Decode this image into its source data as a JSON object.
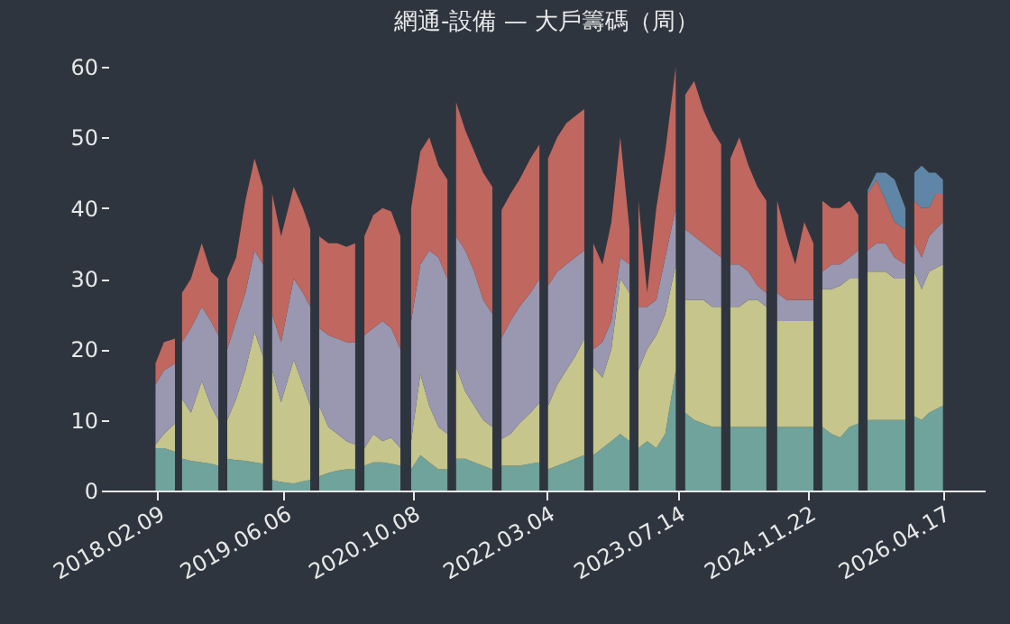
{
  "chart_data": {
    "type": "area",
    "stacked": true,
    "title": "網通-設備 — 大戶籌碼（周）",
    "x": [
      "2018-02-02",
      "2018-03-06",
      "2018-04-17",
      "2018-04-30",
      "2018-05-14",
      "2018-06-17",
      "2018-07-28",
      "2018-09-01",
      "2018-09-29",
      "2018-10-16",
      "2018-11-02",
      "2018-12-06",
      "2019-01-10",
      "2019-02-14",
      "2019-03-18",
      "2019-04-05",
      "2019-04-22",
      "2019-05-26",
      "2019-07-13",
      "2019-08-17",
      "2019-09-14",
      "2019-10-01",
      "2019-10-18",
      "2019-11-22",
      "2019-12-26",
      "2020-01-30",
      "2020-03-03",
      "2020-03-20",
      "2020-04-07",
      "2020-05-11",
      "2020-06-15",
      "2020-07-18",
      "2020-08-22",
      "2020-09-12",
      "2020-10-02",
      "2020-11-06",
      "2020-12-10",
      "2021-01-14",
      "2021-02-17",
      "2021-03-05",
      "2021-03-22",
      "2021-04-26",
      "2021-05-30",
      "2021-07-03",
      "2021-08-07",
      "2021-08-24",
      "2021-09-11",
      "2021-10-15",
      "2021-11-18",
      "2021-12-30",
      "2022-02-02",
      "2022-02-19",
      "2022-03-07",
      "2022-04-11",
      "2022-05-15",
      "2022-06-18",
      "2022-07-23",
      "2022-08-09",
      "2022-08-26",
      "2022-09-30",
      "2022-11-03",
      "2022-12-07",
      "2023-01-11",
      "2023-01-28",
      "2023-02-14",
      "2023-03-19",
      "2023-04-23",
      "2023-05-27",
      "2023-07-06",
      "2023-07-24",
      "2023-08-11",
      "2023-09-14",
      "2023-10-18",
      "2023-11-22",
      "2023-12-26",
      "2024-01-13",
      "2024-01-30",
      "2024-03-04",
      "2024-04-08",
      "2024-05-12",
      "2024-06-15",
      "2024-07-05",
      "2024-07-26",
      "2024-08-30",
      "2024-10-03",
      "2024-11-06",
      "2024-12-11",
      "2024-12-28",
      "2025-01-14",
      "2025-02-18",
      "2025-03-23",
      "2025-04-27",
      "2025-05-31",
      "2025-06-18",
      "2025-07-05",
      "2025-08-08",
      "2025-09-12",
      "2025-10-16",
      "2025-11-26",
      "2025-12-12",
      "2025-12-30",
      "2026-01-27",
      "2026-02-24",
      "2026-03-21",
      "2026-04-18"
    ],
    "series": [
      {
        "color": "#6fa39c",
        "values": [
          6,
          6,
          5.5,
          null,
          4.5,
          4.2,
          4,
          3.8,
          3.5,
          null,
          4.5,
          4.3,
          4.2,
          4,
          3.8,
          null,
          1.5,
          1.2,
          1,
          1.3,
          1.5,
          null,
          2,
          2.5,
          2.8,
          3,
          3,
          null,
          3.5,
          4,
          4,
          3.8,
          3.5,
          null,
          3,
          5,
          4,
          3,
          3,
          null,
          4.5,
          4.5,
          4,
          3.5,
          3,
          null,
          3.5,
          3.5,
          3.5,
          3.8,
          4,
          null,
          3,
          3.5,
          4,
          4.5,
          5,
          null,
          5,
          6,
          7,
          8,
          7,
          null,
          6,
          7,
          6,
          8,
          17,
          null,
          11,
          10,
          9.5,
          9,
          9,
          null,
          9,
          9,
          9,
          9,
          9,
          null,
          9,
          9,
          9,
          9,
          9,
          null,
          9,
          8,
          7.5,
          9,
          9.5,
          null,
          10,
          10,
          10,
          10,
          10,
          null,
          10.5,
          10,
          11,
          11.5,
          12
        ]
      },
      {
        "color": "#c5c58c",
        "values": [
          0.5,
          2,
          4,
          null,
          8.5,
          6.8,
          11.5,
          8.2,
          6.5,
          null,
          5.5,
          8.7,
          12.8,
          18.5,
          15.2,
          null,
          15.5,
          11.3,
          17.5,
          13.7,
          10.5,
          null,
          10,
          6.5,
          5.2,
          4,
          3.5,
          null,
          2.5,
          4,
          3,
          3.7,
          2.5,
          null,
          4,
          11.5,
          8,
          6,
          5,
          null,
          13,
          9.5,
          8,
          6.5,
          6,
          null,
          3.8,
          4.5,
          6,
          7.2,
          8.4,
          null,
          9,
          11.5,
          13,
          14.5,
          16.5,
          null,
          12.5,
          10,
          13,
          22,
          21,
          null,
          11,
          13,
          16,
          17,
          15,
          null,
          16,
          17,
          17.5,
          17,
          17,
          null,
          17,
          17,
          18,
          18,
          17,
          null,
          15,
          15,
          15,
          15,
          15,
          null,
          19.5,
          20.5,
          21.5,
          21,
          20.5,
          null,
          21,
          21,
          21,
          20,
          20,
          null,
          20.5,
          18.5,
          20,
          20,
          20
        ]
      },
      {
        "color": "#9a97b0",
        "values": [
          8.5,
          9,
          8.5,
          null,
          8,
          12,
          10.5,
          12,
          12,
          null,
          10,
          11,
          11,
          11.5,
          13,
          null,
          8,
          8.5,
          11.5,
          13,
          14,
          null,
          11,
          13,
          13.5,
          14,
          14.5,
          null,
          16,
          15,
          17,
          15.5,
          14,
          null,
          17,
          15.5,
          22,
          24,
          22,
          null,
          18.5,
          20,
          19,
          17,
          16,
          null,
          14.3,
          16,
          16.5,
          17,
          17.6,
          null,
          17,
          16,
          15,
          14,
          12.5,
          null,
          2.5,
          5,
          4,
          3,
          4,
          null,
          9,
          6,
          5,
          8,
          8,
          null,
          10,
          9,
          8,
          8,
          7,
          null,
          6,
          6,
          4,
          2,
          2,
          null,
          4,
          3,
          3,
          3,
          3,
          null,
          2.5,
          3.5,
          3,
          3,
          4,
          null,
          3,
          4,
          4,
          3,
          2,
          null,
          4,
          4.5,
          5,
          5.5,
          6
        ]
      },
      {
        "color": "#c0675f",
        "values": [
          3,
          4,
          3.5,
          null,
          7,
          7,
          9,
          7,
          8,
          null,
          10,
          9,
          13,
          13,
          11,
          null,
          17,
          15,
          13,
          12,
          11,
          null,
          13,
          13,
          13.5,
          13.5,
          14,
          null,
          14,
          16,
          16,
          16.5,
          16,
          null,
          16,
          16,
          16,
          13,
          14,
          null,
          19,
          17,
          17,
          18,
          18,
          null,
          18.1,
          18,
          18,
          19,
          19,
          null,
          18,
          19,
          20,
          20,
          20,
          null,
          15,
          11,
          14,
          17,
          5,
          null,
          15,
          2,
          13,
          15,
          20,
          null,
          19,
          22,
          19,
          17,
          16,
          null,
          15,
          18,
          15,
          14,
          13,
          null,
          13,
          9,
          5,
          11,
          8,
          null,
          10,
          8,
          8,
          8,
          5,
          null,
          8,
          9,
          6,
          5,
          5,
          null,
          6,
          7,
          4,
          5,
          4
        ]
      },
      {
        "color": "#5f86a6",
        "values": [
          null,
          null,
          null,
          null,
          null,
          null,
          null,
          null,
          null,
          null,
          null,
          null,
          null,
          null,
          null,
          null,
          null,
          null,
          null,
          null,
          null,
          null,
          null,
          null,
          null,
          null,
          null,
          null,
          null,
          null,
          null,
          null,
          null,
          null,
          null,
          null,
          null,
          null,
          null,
          null,
          null,
          null,
          null,
          null,
          null,
          null,
          null,
          null,
          null,
          null,
          null,
          null,
          null,
          null,
          null,
          null,
          null,
          null,
          null,
          null,
          null,
          null,
          null,
          null,
          null,
          null,
          null,
          null,
          null,
          null,
          null,
          null,
          null,
          null,
          null,
          null,
          null,
          null,
          null,
          null,
          null,
          null,
          null,
          null,
          null,
          null,
          null,
          null,
          null,
          null,
          null,
          null,
          null,
          null,
          0.5,
          1,
          4,
          6,
          3,
          null,
          4,
          6,
          5,
          3,
          2
        ]
      }
    ],
    "xlim": [
      "2017-08-06",
      "2026-09-24"
    ],
    "xticks": [
      {
        "value": "2018-02-09",
        "label": "2018.02.09"
      },
      {
        "value": "2019-06-06",
        "label": "2019.06.06"
      },
      {
        "value": "2020-10-08",
        "label": "2020.10.08"
      },
      {
        "value": "2022-03-04",
        "label": "2022.03.04"
      },
      {
        "value": "2023-07-14",
        "label": "2023.07.14"
      },
      {
        "value": "2024-11-22",
        "label": "2024.11.22"
      },
      {
        "value": "2026-04-17",
        "label": "2026.04.17"
      }
    ],
    "ylim": [
      0,
      60
    ],
    "yticks": [
      0,
      10,
      20,
      30,
      40,
      50,
      60
    ],
    "grid": false
  }
}
